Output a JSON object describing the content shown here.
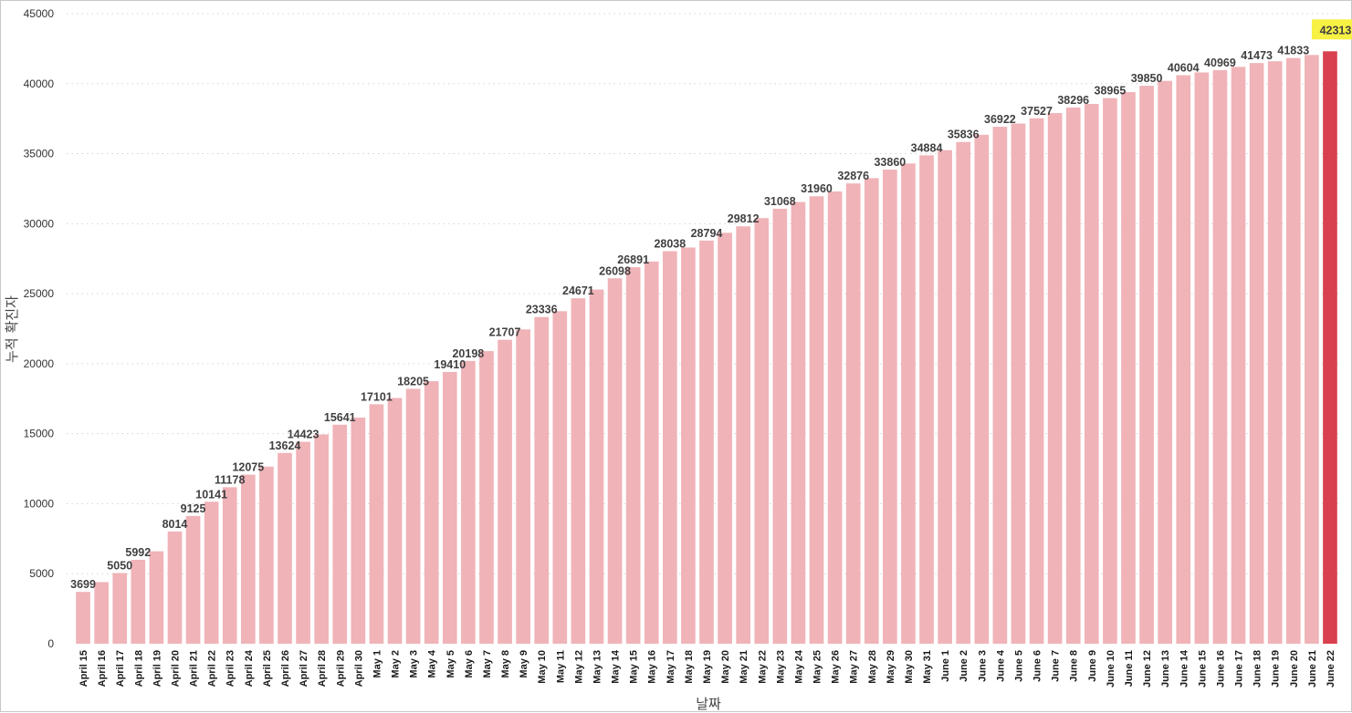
{
  "chart_data": {
    "type": "bar",
    "xlabel": "날짜",
    "ylabel": "누적 확진자",
    "ylim": [
      0,
      45000
    ],
    "yticks": [
      0,
      5000,
      10000,
      15000,
      20000,
      25000,
      30000,
      35000,
      40000,
      45000
    ],
    "grid": true,
    "colors": {
      "bar": "#f0b3b8",
      "highlight_bar": "#d9404f",
      "highlight_label_bg": "#f7f144"
    },
    "highlight_category": "June 22",
    "categories": [
      "April 15",
      "April 16",
      "April 17",
      "April 18",
      "April 19",
      "April 20",
      "April 21",
      "April 22",
      "April 23",
      "April 24",
      "April 25",
      "April 26",
      "April 27",
      "April 28",
      "April 29",
      "April 30",
      "May 1",
      "May 2",
      "May 3",
      "May 4",
      "May 5",
      "May 6",
      "May 7",
      "May 8",
      "May 9",
      "May 10",
      "May 11",
      "May 12",
      "May 13",
      "May 14",
      "May 15",
      "May 16",
      "May 17",
      "May 18",
      "May 19",
      "May 20",
      "May 21",
      "May 22",
      "May 23",
      "May 24",
      "May 25",
      "May 26",
      "May 27",
      "May 28",
      "May 29",
      "May 30",
      "May 31",
      "June 1",
      "June 2",
      "June 3",
      "June 4",
      "June 5",
      "June 6",
      "June 7",
      "June 8",
      "June 9",
      "June 10",
      "June 11",
      "June 12",
      "June 13",
      "June 14",
      "June 15",
      "June 16",
      "June 17",
      "June 18",
      "June 19",
      "June 20",
      "June 21",
      "June 22"
    ],
    "values": [
      3699,
      4400,
      5050,
      5992,
      6600,
      8014,
      9125,
      10141,
      11178,
      12075,
      12650,
      13624,
      14423,
      14950,
      15641,
      16150,
      17101,
      17550,
      18205,
      18750,
      19410,
      20198,
      20900,
      21707,
      22450,
      23336,
      23750,
      24671,
      25300,
      26098,
      26891,
      27300,
      28038,
      28300,
      28794,
      29350,
      29812,
      30400,
      31068,
      31550,
      31960,
      32300,
      32876,
      33250,
      33860,
      34300,
      34884,
      35250,
      35836,
      36350,
      36922,
      37150,
      37527,
      37900,
      38296,
      38550,
      38965,
      39400,
      39850,
      40200,
      40604,
      40800,
      40969,
      41200,
      41473,
      41600,
      41833,
      42050,
      42313
    ],
    "data_labels": [
      {
        "category": "April 15",
        "text": "3699"
      },
      {
        "category": "April 17",
        "text": "5050"
      },
      {
        "category": "April 18",
        "text": "5992"
      },
      {
        "category": "April 20",
        "text": "8014"
      },
      {
        "category": "April 21",
        "text": "9125"
      },
      {
        "category": "April 22",
        "text": "10141"
      },
      {
        "category": "April 23",
        "text": "11178"
      },
      {
        "category": "April 24",
        "text": "12075"
      },
      {
        "category": "April 26",
        "text": "13624"
      },
      {
        "category": "April 27",
        "text": "14423"
      },
      {
        "category": "April 29",
        "text": "15641"
      },
      {
        "category": "May 1",
        "text": "17101"
      },
      {
        "category": "May 3",
        "text": "18205"
      },
      {
        "category": "May 5",
        "text": "19410"
      },
      {
        "category": "May 6",
        "text": "20198"
      },
      {
        "category": "May 8",
        "text": "21707"
      },
      {
        "category": "May 10",
        "text": "23336"
      },
      {
        "category": "May 12",
        "text": "24671"
      },
      {
        "category": "May 14",
        "text": "26098"
      },
      {
        "category": "May 15",
        "text": "26891"
      },
      {
        "category": "May 17",
        "text": "28038"
      },
      {
        "category": "May 19",
        "text": "28794"
      },
      {
        "category": "May 21",
        "text": "29812"
      },
      {
        "category": "May 23",
        "text": "31068"
      },
      {
        "category": "May 25",
        "text": "31960"
      },
      {
        "category": "May 27",
        "text": "32876"
      },
      {
        "category": "May 29",
        "text": "33860"
      },
      {
        "category": "May 31",
        "text": "34884"
      },
      {
        "category": "June 2",
        "text": "35836"
      },
      {
        "category": "June 4",
        "text": "36922"
      },
      {
        "category": "June 6",
        "text": "37527"
      },
      {
        "category": "June 8",
        "text": "38296"
      },
      {
        "category": "June 10",
        "text": "38965"
      },
      {
        "category": "June 12",
        "text": "39850"
      },
      {
        "category": "June 14",
        "text": "40604"
      },
      {
        "category": "June 16",
        "text": "40969"
      },
      {
        "category": "June 18",
        "text": "41473"
      },
      {
        "category": "June 20",
        "text": "41833"
      },
      {
        "category": "June 22",
        "text": "42313"
      }
    ]
  }
}
